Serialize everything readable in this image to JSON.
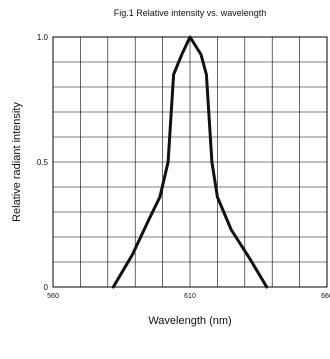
{
  "chart_data": {
    "type": "line",
    "title": "Fig.1 Relative intensity vs. wavelength",
    "xlabel": "Wavelength (nm)",
    "ylabel": "Relative radiant intensity",
    "xlim": [
      560,
      660
    ],
    "ylim": [
      0,
      1.0
    ],
    "x_ticks": [
      "560",
      "610",
      "660"
    ],
    "y_ticks": [
      "0",
      "0.5",
      "1.0"
    ],
    "grid": true,
    "series": [
      {
        "x": [
          582,
          589,
          595,
          599,
          602,
          604,
          607,
          610,
          614,
          616,
          618,
          620,
          625,
          632,
          638
        ],
        "y": [
          0,
          0.13,
          0.27,
          0.36,
          0.5,
          0.85,
          0.93,
          1.0,
          0.93,
          0.85,
          0.5,
          0.36,
          0.23,
          0.11,
          0
        ]
      }
    ]
  }
}
